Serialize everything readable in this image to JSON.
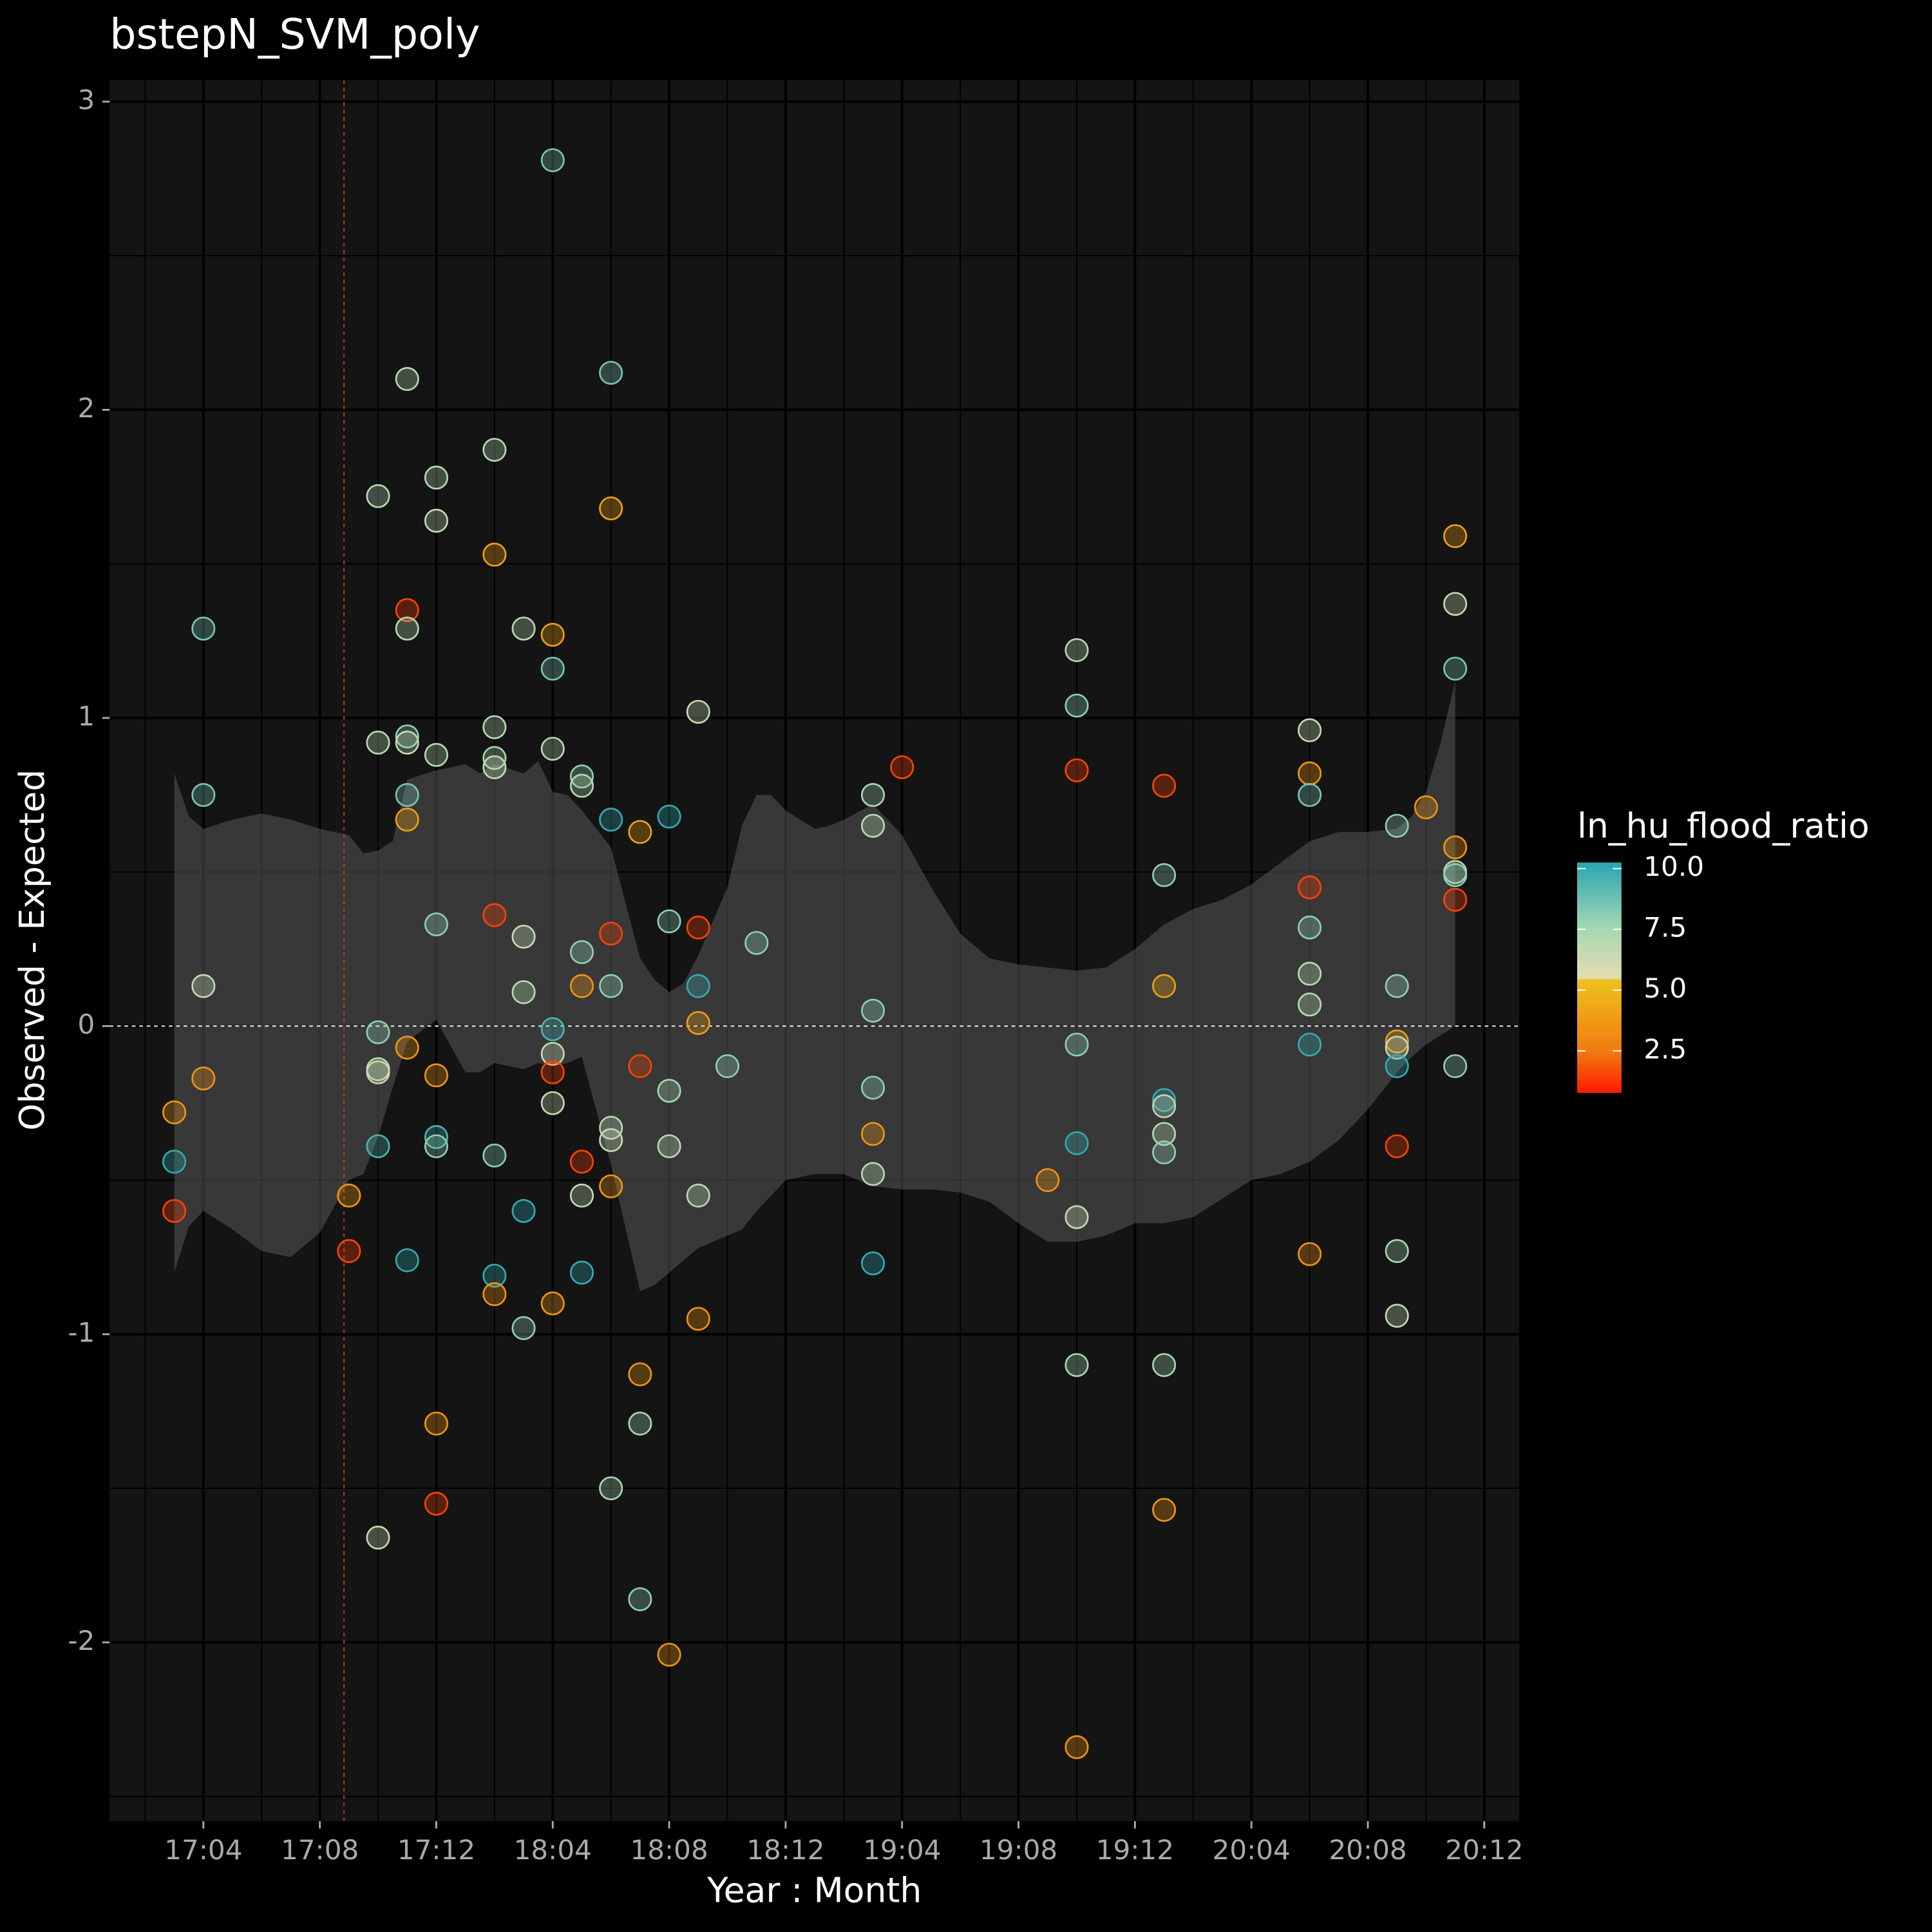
{
  "chart_data": {
    "type": "scatter",
    "title": "bstepN_SVM_poly",
    "x_label": "Year : Month",
    "y_label": "Observed - Expected",
    "colorbar_title": "ln_hu_flood_ratio",
    "xlim": [
      0.78,
      49.2
    ],
    "ylim": [
      -2.58,
      3.07
    ],
    "xticks": [
      {
        "value": 4,
        "label": "17:04"
      },
      {
        "value": 8,
        "label": "17:08"
      },
      {
        "value": 12,
        "label": "17:12"
      },
      {
        "value": 16,
        "label": "18:04"
      },
      {
        "value": 20,
        "label": "18:08"
      },
      {
        "value": 24,
        "label": "18:12"
      },
      {
        "value": 28,
        "label": "19:04"
      },
      {
        "value": 32,
        "label": "19:08"
      },
      {
        "value": 36,
        "label": "19:12"
      },
      {
        "value": 40,
        "label": "20:04"
      },
      {
        "value": 44,
        "label": "20:08"
      },
      {
        "value": 48,
        "label": "20:12"
      }
    ],
    "yticks": [
      -2,
      -1,
      0,
      1,
      2,
      3
    ],
    "grid": true,
    "hline": 0,
    "vline": 8.83,
    "x": [
      3,
      3,
      3,
      4,
      4,
      4,
      4,
      9,
      9,
      10,
      10,
      10,
      10,
      10,
      10,
      10,
      11,
      11,
      11,
      11,
      11,
      11,
      11,
      11,
      11,
      12,
      12,
      12,
      12,
      12,
      12,
      12,
      12,
      12,
      14,
      14,
      14,
      14,
      14,
      14,
      14,
      14,
      14,
      15,
      15,
      15,
      15,
      15,
      16,
      16,
      16,
      16,
      16,
      16,
      16,
      16,
      16,
      17,
      17,
      17,
      17,
      17,
      17,
      17,
      18,
      18,
      18,
      18,
      18,
      18,
      18,
      18,
      18,
      19,
      19,
      19,
      19,
      19,
      20,
      20,
      20,
      20,
      20,
      21,
      21,
      21,
      21,
      21,
      21,
      22,
      23,
      27,
      27,
      27,
      27,
      27,
      27,
      27,
      28,
      33,
      34,
      34,
      34,
      34,
      34,
      34,
      34,
      34,
      37,
      37,
      37,
      37,
      37,
      37,
      37,
      37,
      37,
      42,
      42,
      42,
      42,
      42,
      42,
      42,
      42,
      42,
      45,
      45,
      45,
      45,
      45,
      45,
      45,
      45,
      46,
      47,
      47,
      47,
      47,
      47,
      47,
      47,
      47
    ],
    "values": [
      -0.28,
      -0.44,
      -0.6,
      1.29,
      0.75,
      0.13,
      -0.17,
      -0.55,
      -0.73,
      1.72,
      0.92,
      -0.02,
      -0.14,
      -0.15,
      -0.39,
      -1.66,
      2.1,
      1.35,
      1.29,
      0.94,
      0.92,
      0.75,
      0.67,
      -0.07,
      -0.76,
      1.78,
      1.64,
      0.88,
      0.33,
      -0.16,
      -0.36,
      -0.39,
      -1.29,
      -1.55,
      1.87,
      1.53,
      0.97,
      0.87,
      0.84,
      0.36,
      -0.42,
      -0.81,
      -0.87,
      1.29,
      0.29,
      0.11,
      -0.6,
      -0.98,
      2.81,
      1.27,
      1.16,
      0.9,
      -0.01,
      -0.09,
      -0.15,
      -0.25,
      -0.9,
      0.81,
      0.78,
      0.24,
      0.13,
      -0.44,
      -0.55,
      -0.8,
      2.12,
      1.68,
      0.67,
      0.3,
      0.13,
      -0.33,
      -0.37,
      -0.52,
      -1.5,
      0.63,
      -0.13,
      -1.13,
      -1.29,
      -1.86,
      0.68,
      0.34,
      -0.21,
      -0.39,
      -2.04,
      1.02,
      0.32,
      0.13,
      0.01,
      -0.55,
      -0.95,
      -0.13,
      0.27,
      0.75,
      0.65,
      0.05,
      -0.2,
      -0.35,
      -0.48,
      -0.77,
      0.84,
      -0.5,
      1.22,
      1.04,
      0.83,
      -0.06,
      -0.38,
      -0.62,
      -1.1,
      -2.34,
      0.78,
      0.49,
      0.13,
      -0.24,
      -0.26,
      -0.35,
      -0.41,
      -1.1,
      -1.57,
      0.96,
      0.82,
      0.75,
      0.45,
      0.32,
      0.17,
      0.07,
      -0.06,
      -0.74,
      0.65,
      0.13,
      -0.05,
      -0.07,
      -0.13,
      -0.39,
      -0.73,
      -0.94,
      0.71,
      1.59,
      1.37,
      1.16,
      0.58,
      0.5,
      0.49,
      0.41,
      -0.13
    ],
    "color_values": [
      3.5,
      10,
      1.5,
      8.5,
      8.5,
      6.5,
      3.5,
      3.5,
      1.5,
      7,
      7,
      8,
      6.5,
      6.5,
      9.5,
      6.5,
      7,
      1.5,
      7,
      8,
      6.5,
      8.5,
      4,
      3.5,
      10,
      7,
      6.5,
      7,
      8,
      3.5,
      9.5,
      8,
      3.5,
      1.5,
      7,
      4,
      7,
      7.5,
      6.5,
      1.5,
      8,
      10,
      3.5,
      7,
      6.5,
      7,
      10,
      8,
      8.5,
      4,
      8.5,
      7,
      9.5,
      6.5,
      1.5,
      6.5,
      3.5,
      8,
      7,
      8,
      3.5,
      1.5,
      6.5,
      10,
      8.5,
      4,
      10,
      1.5,
      8,
      7,
      6.5,
      3.5,
      7.5,
      4,
      1.5,
      3.5,
      7.5,
      8,
      10,
      8,
      7.5,
      7,
      3.5,
      6.5,
      1.5,
      10,
      4,
      7,
      3.5,
      8,
      8,
      7.5,
      7,
      8,
      8,
      3.5,
      7,
      10,
      1.5,
      3.5,
      7,
      8,
      1.5,
      8,
      10,
      6.5,
      7.5,
      3.5,
      1.5,
      8,
      4,
      10,
      7,
      7,
      8,
      7.5,
      3.5,
      6.5,
      3.5,
      8.5,
      1.5,
      8,
      7,
      7,
      10,
      3.5,
      8,
      8,
      4,
      6.5,
      10,
      1.5,
      7.5,
      6.5,
      3.5,
      4,
      6.5,
      8.5,
      3.5,
      7,
      8,
      1.5,
      8
    ],
    "ribbon": {
      "x": [
        3,
        3.5,
        4,
        5,
        6,
        7,
        8,
        9,
        9.5,
        10,
        10.5,
        11,
        12,
        13,
        13.5,
        14,
        15,
        15.5,
        16,
        16.5,
        17,
        18,
        19,
        19.5,
        20,
        20.5,
        21,
        22,
        22.5,
        23,
        23.5,
        24,
        25,
        25.5,
        26,
        27,
        28,
        29,
        30,
        31,
        32,
        33,
        34,
        35,
        36,
        37,
        38,
        39,
        40,
        41,
        42,
        43,
        44,
        45,
        45.5,
        46,
        46.5,
        47
      ],
      "upper": [
        0.82,
        0.68,
        0.64,
        0.67,
        0.69,
        0.67,
        0.64,
        0.62,
        0.56,
        0.57,
        0.6,
        0.8,
        0.83,
        0.85,
        0.82,
        0.85,
        0.82,
        0.86,
        0.76,
        0.75,
        0.7,
        0.58,
        0.22,
        0.15,
        0.11,
        0.14,
        0.23,
        0.45,
        0.65,
        0.75,
        0.75,
        0.7,
        0.64,
        0.65,
        0.67,
        0.72,
        0.62,
        0.45,
        0.3,
        0.22,
        0.2,
        0.19,
        0.18,
        0.19,
        0.25,
        0.33,
        0.38,
        0.41,
        0.46,
        0.53,
        0.6,
        0.63,
        0.63,
        0.64,
        0.68,
        0.76,
        0.92,
        1.12
      ],
      "lower": [
        -0.8,
        -0.65,
        -0.6,
        -0.66,
        -0.73,
        -0.75,
        -0.67,
        -0.5,
        -0.48,
        -0.36,
        -0.2,
        -0.05,
        0.02,
        -0.15,
        -0.15,
        -0.12,
        -0.14,
        -0.12,
        -0.13,
        -0.12,
        -0.1,
        -0.45,
        -0.86,
        -0.84,
        -0.8,
        -0.76,
        -0.72,
        -0.68,
        -0.66,
        -0.6,
        -0.55,
        -0.5,
        -0.48,
        -0.48,
        -0.48,
        -0.52,
        -0.53,
        -0.53,
        -0.54,
        -0.57,
        -0.64,
        -0.7,
        -0.7,
        -0.68,
        -0.64,
        -0.64,
        -0.62,
        -0.56,
        -0.5,
        -0.48,
        -0.44,
        -0.37,
        -0.27,
        -0.15,
        -0.1,
        -0.06,
        -0.03,
        0.0
      ]
    },
    "colorbar_lim": [
      0.77,
      10.25
    ],
    "colorbar_ticks": [
      2.5,
      {
        "value": 5,
        "label": "5.0"
      },
      {
        "value": 7.5,
        "label": "7.5"
      },
      {
        "value": 10,
        "label": "10.0"
      }
    ],
    "colorscale": [
      {
        "value": 0.77,
        "color": "#ff1a00"
      },
      {
        "value": 2.5,
        "color": "#f07c10"
      },
      {
        "value": 5.4,
        "color": "#eec21b"
      },
      {
        "value": 5.5,
        "color": "#e4dcb0"
      },
      {
        "value": 7.5,
        "color": "#a6d8b4"
      },
      {
        "value": 10.25,
        "color": "#2aa5b2"
      }
    ]
  }
}
